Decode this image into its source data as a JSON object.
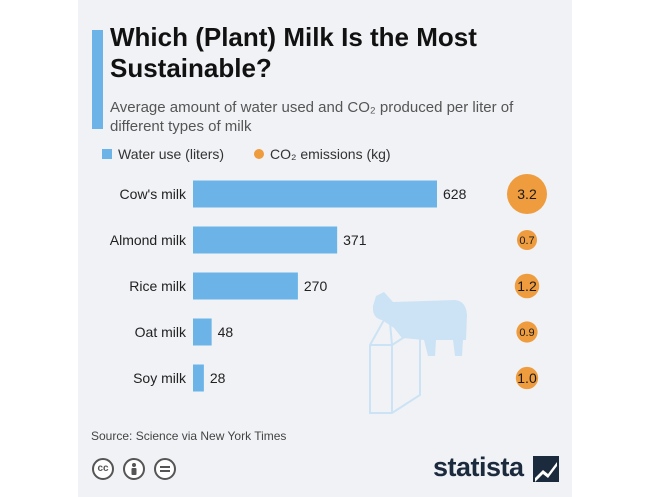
{
  "title": "Which (Plant) Milk Is the Most Sustainable?",
  "subtitle": "Average amount of water used and CO₂ produced per liter of different types of milk",
  "legend": {
    "water": "Water use (liters)",
    "co2": "CO₂ emissions (kg)"
  },
  "source": "Source: Science via New York Times",
  "license_icons": [
    "cc-icon",
    "by-person-icon",
    "no-derivatives-icon"
  ],
  "brand": "statista",
  "colors": {
    "water": "#6cb4e8",
    "co2": "#ee9c3e",
    "illustration": "#cce3f5"
  },
  "chart_data": {
    "type": "bar",
    "orientation": "horizontal",
    "categories": [
      "Cow's milk",
      "Almond milk",
      "Rice milk",
      "Oat milk",
      "Soy milk"
    ],
    "series": [
      {
        "name": "Water use (liters)",
        "values": [
          628,
          371,
          270,
          48,
          28
        ]
      },
      {
        "name": "CO₂ emissions (kg)",
        "values": [
          3.2,
          0.7,
          1.2,
          0.9,
          1.0
        ],
        "value_labels": [
          "3.2",
          "0.7",
          "1.2",
          "0.9",
          "1.0"
        ]
      }
    ],
    "grid": false,
    "legend_position": "top"
  }
}
